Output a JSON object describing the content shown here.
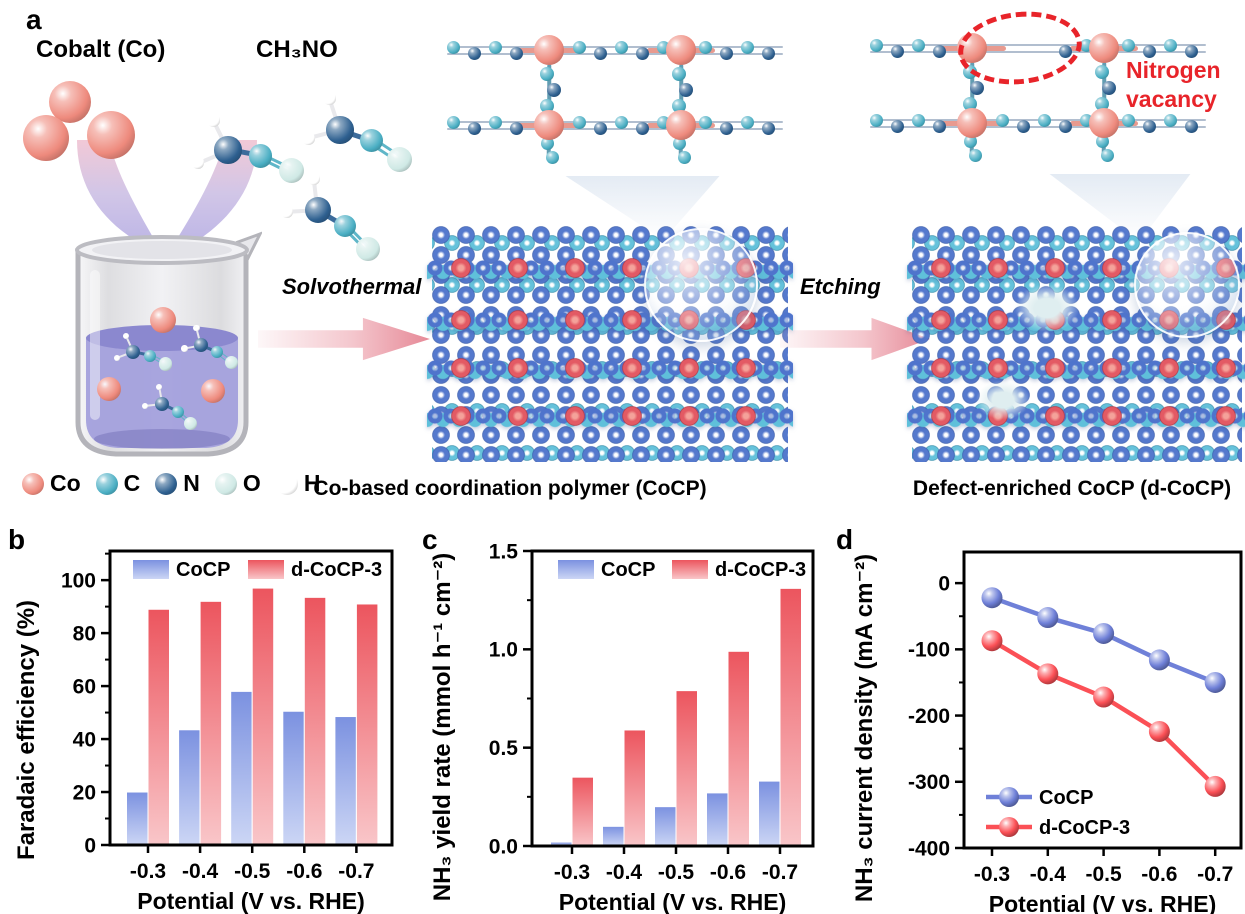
{
  "panel_a": {
    "label": "a",
    "reactant_1": "Cobalt (Co)",
    "reactant_2": "CH₃NO",
    "step_1": "Solvothermal",
    "step_2": "Etching",
    "vacancy_line_1": "Nitrogen",
    "vacancy_line_2": "vacancy",
    "caption_left": "Co-based coordination polymer (CoCP)",
    "caption_right": "Defect-enriched CoCP (d-CoCP)",
    "atom_legend": [
      {
        "symbol": "Co",
        "color": "#ee8a7d"
      },
      {
        "symbol": "C",
        "color": "#4aaec3"
      },
      {
        "symbol": "N",
        "color": "#2e6090"
      },
      {
        "symbol": "O",
        "color": "#cfe9e5"
      },
      {
        "symbol": "H",
        "color": "#ffffff"
      }
    ],
    "colors": {
      "vacancy_red": "#e8242a",
      "arrow_pink": "#e68997",
      "pour_pink": "#f0c3d2",
      "pour_lavender": "#b7b1e6",
      "crystal_blue": "#4f74cc",
      "crystal_teal": "#5fc0da",
      "crystal_red": "#e35a64",
      "liquid_purple": "#a3a0dc",
      "bg_left": "#f3f0e5",
      "bg_right": "#d5e6e6"
    }
  },
  "chart_data": [
    {
      "id": "b",
      "panel_label": "b",
      "type": "bar",
      "categories": [
        "-0.3",
        "-0.4",
        "-0.5",
        "-0.6",
        "-0.7"
      ],
      "series": [
        {
          "name": "CoCP",
          "values": [
            20,
            43.5,
            58,
            50.5,
            48.5
          ],
          "color_top": "#7b91e0",
          "color_bottom": "#ccd6f5"
        },
        {
          "name": "d-CoCP-3",
          "values": [
            89,
            92,
            97,
            93.5,
            91
          ],
          "color_top": "#ec555e",
          "color_bottom": "#f9c6c9"
        }
      ],
      "xlabel": "Potential (V vs. RHE)",
      "ylabel": "Faradaic efficiency (%)",
      "ylim": [
        0,
        111
      ],
      "yticks": [
        "0",
        "20",
        "40",
        "60",
        "80",
        "100"
      ],
      "minor_step": 10,
      "grid": false,
      "legend_position": "top-inside"
    },
    {
      "id": "c",
      "panel_label": "c",
      "type": "bar",
      "categories": [
        "-0.3",
        "-0.4",
        "-0.5",
        "-0.6",
        "-0.7"
      ],
      "series": [
        {
          "name": "CoCP",
          "values": [
            0.02,
            0.1,
            0.2,
            0.27,
            0.33
          ],
          "color_top": "#7b91e0",
          "color_bottom": "#ccd6f5"
        },
        {
          "name": "d-CoCP-3",
          "values": [
            0.35,
            0.59,
            0.79,
            0.99,
            1.31
          ],
          "color_top": "#ec555e",
          "color_bottom": "#f9c6c9"
        }
      ],
      "xlabel": "Potential (V vs. RHE)",
      "ylabel": "NH₃ yield rate (mmol h⁻¹ cm⁻²)",
      "ylim": [
        0,
        1.5
      ],
      "yticks": [
        "0.0",
        "0.5",
        "1.0",
        "1.5"
      ],
      "minor_step": 0.25,
      "grid": false,
      "legend_position": "top-inside"
    },
    {
      "id": "d",
      "panel_label": "d",
      "type": "line",
      "categories": [
        "-0.3",
        "-0.4",
        "-0.5",
        "-0.6",
        "-0.7"
      ],
      "series": [
        {
          "name": "CoCP",
          "values": [
            -22,
            -52,
            -76,
            -116,
            -150
          ],
          "color": "#6f80d8"
        },
        {
          "name": "d-CoCP-3",
          "values": [
            -87,
            -137,
            -172,
            -224,
            -307
          ],
          "color": "#fb5056"
        }
      ],
      "xlabel": "Potential (V vs. RHE)",
      "ylabel": "NH₃ current density (mA cm⁻²)",
      "ylim": [
        -400,
        47
      ],
      "yticks": [
        "0",
        "-100",
        "-200",
        "-300",
        "-400"
      ],
      "minor_step": 50,
      "grid": false,
      "legend_position": "bottom-left-inside"
    }
  ]
}
